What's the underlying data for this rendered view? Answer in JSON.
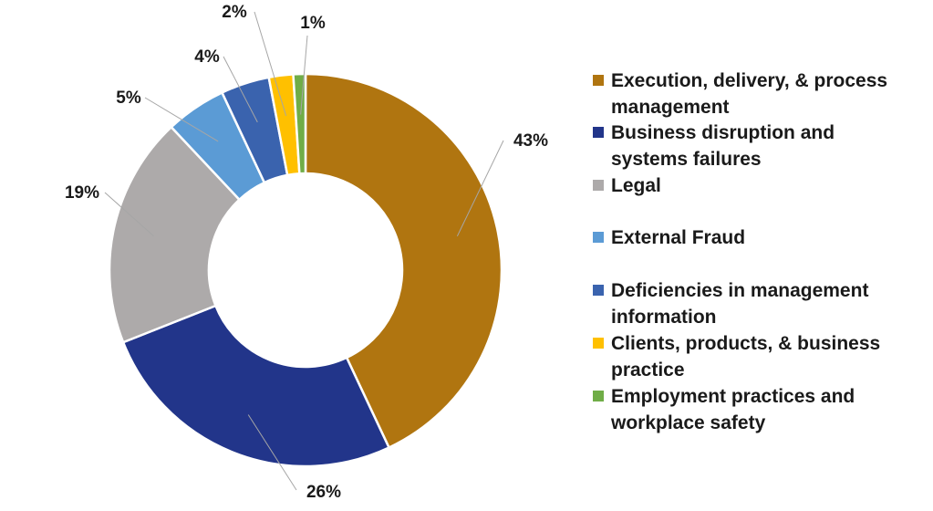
{
  "chart_data": {
    "type": "pie",
    "donut": true,
    "legend_position": "right",
    "labels": [
      "Execution, delivery, & process management",
      "Business disruption and systems failures",
      "Legal",
      "External Fraud",
      "Deficiencies in management information",
      "Clients, products, & business practice",
      "Employment practices and workplace safety"
    ],
    "values": [
      43,
      26,
      19,
      5,
      4,
      2,
      1
    ],
    "value_labels": [
      "43%",
      "26%",
      "19%",
      "5%",
      "4%",
      "2%",
      "1%"
    ],
    "colors": [
      "#B07510",
      "#22358A",
      "#ADAAAA",
      "#5B9BD5",
      "#3A63AE",
      "#FFC000",
      "#70AD47"
    ]
  }
}
